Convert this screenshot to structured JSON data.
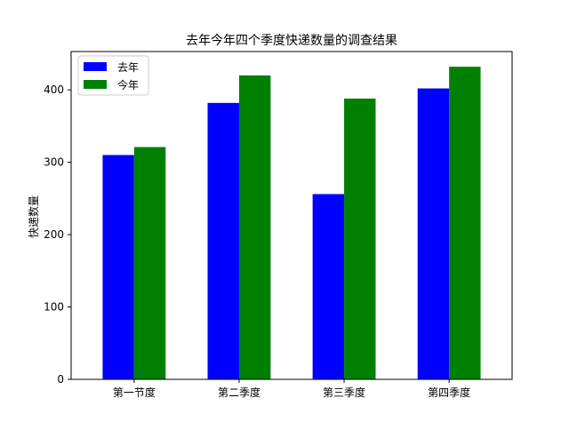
{
  "chart_data": {
    "type": "bar",
    "title": "去年今年四个季度快递数量的调查结果",
    "xlabel": "",
    "ylabel": "快递数量",
    "categories": [
      "第一节度",
      "第二季度",
      "第三季度",
      "第四季度"
    ],
    "series": [
      {
        "name": "去年",
        "values": [
          310,
          382,
          256,
          402
        ],
        "color": "#0000ff"
      },
      {
        "name": "今年",
        "values": [
          321,
          420,
          388,
          432
        ],
        "color": "#008000"
      }
    ],
    "ylim": [
      0,
      453
    ],
    "yticks": [
      0,
      100,
      200,
      300,
      400
    ],
    "grid": false,
    "legend_position": "top-left"
  }
}
